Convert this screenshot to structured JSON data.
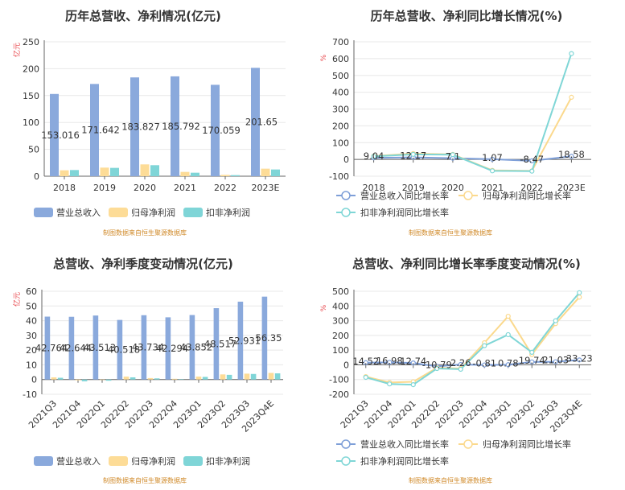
{
  "footer_text": "制图数据来自恒生聚源数据库",
  "colors": {
    "revenue": "#8aa9dc",
    "net_profit": "#fddc97",
    "deducted_profit": "#7fd5d7",
    "revenue_line": "#7e9fd8",
    "net_profit_line": "#fbd98d",
    "deducted_line": "#7fd6d6",
    "axis": "#666666",
    "grid": "#e8e8e8"
  },
  "chart_data": [
    {
      "type": "bar",
      "title": "历年总营收、净利情况(亿元)",
      "unit_label": "亿元",
      "categories": [
        "2018",
        "2019",
        "2020",
        "2021",
        "2022",
        "2023E"
      ],
      "ylim": [
        0,
        250
      ],
      "yticks": [
        0,
        50,
        100,
        150,
        200,
        250
      ],
      "series": [
        {
          "name": "营业总收入",
          "values": [
            153.016,
            171.642,
            183.827,
            185.792,
            170.059,
            201.65
          ],
          "labels": [
            "153.016",
            "171.642",
            "183.827",
            "185.792",
            "170.059",
            "201.65"
          ]
        },
        {
          "name": "归母净利润",
          "values": [
            11,
            16,
            22,
            8,
            2.5,
            14
          ]
        },
        {
          "name": "扣非净利润",
          "values": [
            11.5,
            15.5,
            20.5,
            6.5,
            2,
            12.5
          ]
        }
      ],
      "legend": "bottom"
    },
    {
      "type": "line",
      "title": "历年总营收、净利同比增长情况(%)",
      "unit_label": "%",
      "categories": [
        "2018",
        "2019",
        "2020",
        "2021",
        "2022",
        "2023E"
      ],
      "ylim": [
        -100,
        700
      ],
      "yticks": [
        -100,
        0,
        100,
        200,
        300,
        400,
        500,
        600,
        700
      ],
      "series": [
        {
          "name": "营业总收入同比增长率",
          "values": [
            9.04,
            12.17,
            7.1,
            1.07,
            -8.47,
            18.58
          ],
          "labels": [
            "9.04",
            "12.17",
            "7.1",
            "1.07",
            "-8.47",
            "18.58"
          ]
        },
        {
          "name": "归母净利润同比增长率",
          "values": [
            20,
            35,
            30,
            -65,
            -68,
            370
          ]
        },
        {
          "name": "扣非净利润同比增长率",
          "values": [
            18,
            30,
            28,
            -68,
            -70,
            630
          ]
        }
      ],
      "legend": "bottom"
    },
    {
      "type": "bar",
      "title": "总营收、净利季度变动情况(亿元)",
      "unit_label": "亿元",
      "categories": [
        "2021Q3",
        "2021Q4",
        "2022Q1",
        "2022Q2",
        "2022Q3",
        "2022Q4",
        "2023Q1",
        "2023Q2",
        "2023Q3",
        "2023Q4E"
      ],
      "ylim": [
        -10,
        60
      ],
      "yticks": [
        -10,
        0,
        10,
        20,
        30,
        40,
        50,
        60
      ],
      "series": [
        {
          "name": "营业总收入",
          "values": [
            42.764,
            42.644,
            43.513,
            40.518,
            43.734,
            42.294,
            43.852,
            48.517,
            52.931,
            56.35
          ],
          "labels": [
            "42.764",
            "42.644",
            "43.513",
            "40.518",
            "43.734",
            "42.294",
            "43.852",
            "48.517",
            "52.931",
            "56.35"
          ]
        },
        {
          "name": "归母净利润",
          "values": [
            1.5,
            -0.5,
            -0.3,
            2,
            1,
            0.5,
            2,
            3.5,
            4,
            4.5
          ]
        },
        {
          "name": "扣非净利润",
          "values": [
            1.2,
            -1.2,
            -0.8,
            1.5,
            0.8,
            0.3,
            1.8,
            3.2,
            3.8,
            4.2
          ]
        }
      ],
      "legend": "bottom"
    },
    {
      "type": "line",
      "title": "总营收、净利同比增长率季度变动情况(%)",
      "unit_label": "%",
      "categories": [
        "2021Q3",
        "2021Q4",
        "2022Q1",
        "2022Q2",
        "2022Q3",
        "2022Q4",
        "2023Q1",
        "2023Q2",
        "2023Q3",
        "2023Q4E"
      ],
      "ylim": [
        -200,
        500
      ],
      "yticks": [
        -200,
        -100,
        0,
        100,
        200,
        300,
        400,
        500
      ],
      "series": [
        {
          "name": "营业总收入同比增长率",
          "values": [
            14.52,
            16.98,
            12.74,
            -10.79,
            2.26,
            -0.81,
            0.78,
            19.74,
            21.03,
            33.23
          ],
          "labels": [
            "14.52",
            "16.98",
            "12.74",
            "-10.79",
            "2.26",
            "-0.81",
            "0.78",
            "19.74",
            "21.03",
            "33.23"
          ]
        },
        {
          "name": "归母净利润同比增长率",
          "values": [
            -80,
            -120,
            -115,
            -20,
            -25,
            150,
            330,
            70,
            280,
            460
          ]
        },
        {
          "name": "扣非净利润同比增长率",
          "values": [
            -85,
            -130,
            -135,
            -25,
            -30,
            130,
            205,
            85,
            300,
            490
          ]
        }
      ],
      "legend": "bottom"
    }
  ]
}
